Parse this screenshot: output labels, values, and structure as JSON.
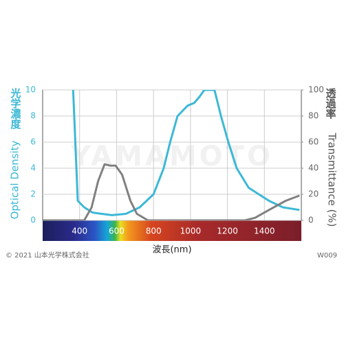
{
  "chart_data": {
    "type": "line",
    "x_label": "波長(nm)",
    "y_label_ja": "光学濃度",
    "y_label": "Optical Density",
    "y2_label_ja": "透過率",
    "y2_label": "Transmittance (%)",
    "watermark": "YAMAMOTO",
    "copyright": "© 2021 山本光学株式会社",
    "code": "W009",
    "xlim": [
      200,
      1600
    ],
    "xticks": [
      400,
      600,
      800,
      1000,
      1200,
      1400
    ],
    "ylim": [
      0,
      10
    ],
    "yticks": [
      0,
      2,
      4,
      6,
      8,
      10
    ],
    "y2lim": [
      0,
      100
    ],
    "y2ticks": [
      0,
      20,
      40,
      60,
      80,
      100
    ],
    "grid": true,
    "series": [
      {
        "name": "Optical Density",
        "color": "#3bb8d6",
        "x": [
          365,
          390,
          425,
          470,
          520,
          575,
          650,
          725,
          800,
          855,
          890,
          930,
          985,
          1020,
          1050,
          1075,
          1130,
          1165,
          1205,
          1250,
          1315,
          1370,
          1425,
          1500,
          1590
        ],
        "values": [
          10,
          1.5,
          1.0,
          0.6,
          0.5,
          0.4,
          0.5,
          1.0,
          2.0,
          4.0,
          6.0,
          8.0,
          8.8,
          9.0,
          9.5,
          10,
          10,
          8.0,
          6.0,
          4.0,
          2.5,
          2.0,
          1.5,
          1.0,
          0.8
        ]
      },
      {
        "name": "Transmittance",
        "color": "#808080",
        "axis": "y2",
        "x": [
          200,
          425,
          465,
          500,
          535,
          565,
          595,
          630,
          675,
          710,
          770,
          1000,
          1295,
          1350,
          1425,
          1515,
          1590
        ],
        "values": [
          0,
          0,
          10,
          30,
          43,
          42,
          42,
          35,
          15,
          5,
          0,
          0,
          0,
          2,
          8,
          15,
          19
        ]
      }
    ]
  }
}
